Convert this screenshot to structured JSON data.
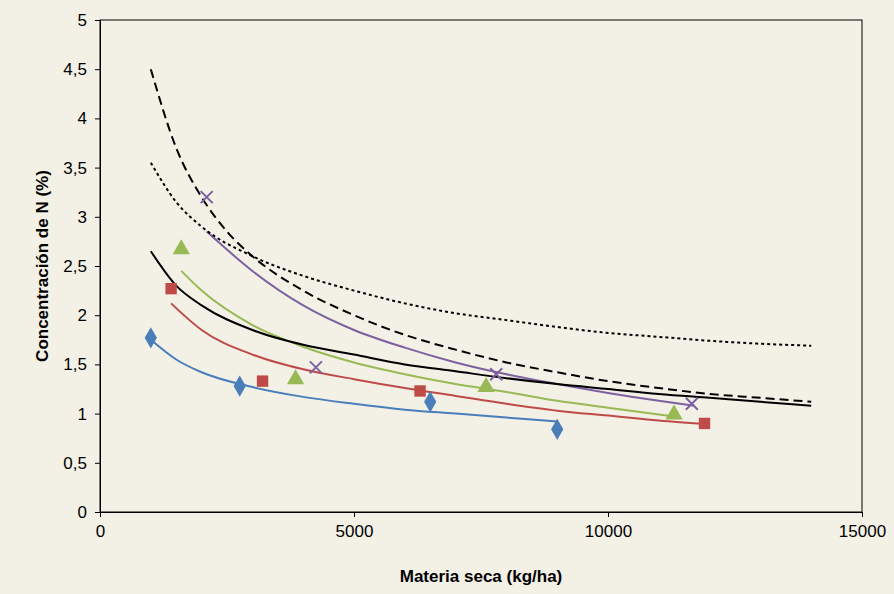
{
  "chart_data": {
    "type": "line",
    "xlabel": "Materia seca (kg/ha)",
    "ylabel": "Concentración de N (%)",
    "xlim": [
      0,
      15000
    ],
    "xticks": [
      0,
      5000,
      10000,
      15000
    ],
    "ylim": [
      0,
      5
    ],
    "yticks": [
      0,
      {
        "value": 0.5,
        "label": "0,5"
      },
      1,
      {
        "value": 1.5,
        "label": "1,5"
      },
      2,
      {
        "value": 2.5,
        "label": "2,5"
      },
      3,
      {
        "value": 3.5,
        "label": "3,5"
      },
      4,
      {
        "value": 4.5,
        "label": "4,5"
      },
      5
    ],
    "grid": false,
    "series": [
      {
        "type": "line",
        "color": "#4a7ebb",
        "line_style": "solid",
        "x": [
          1000,
          1500,
          2000,
          3000,
          4000,
          5000,
          6000,
          7000,
          8000,
          9000
        ],
        "values": [
          1.75,
          1.55,
          1.42,
          1.27,
          1.17,
          1.1,
          1.04,
          1.0,
          0.96,
          0.92
        ]
      },
      {
        "type": "line",
        "color": "#be4b48",
        "line_style": "solid",
        "x": [
          1400,
          2000,
          3000,
          4000,
          5000,
          6000,
          7000,
          8000,
          9000,
          10000,
          11000,
          12000
        ],
        "values": [
          2.12,
          1.85,
          1.6,
          1.45,
          1.35,
          1.26,
          1.18,
          1.1,
          1.03,
          0.98,
          0.93,
          0.89
        ]
      },
      {
        "type": "line",
        "color": "#98b954",
        "line_style": "solid",
        "x": [
          1600,
          2000,
          3000,
          4000,
          5000,
          6000,
          7000,
          8000,
          9000,
          10000,
          11300
        ],
        "values": [
          2.45,
          2.25,
          1.9,
          1.68,
          1.52,
          1.4,
          1.3,
          1.22,
          1.13,
          1.06,
          0.97
        ]
      },
      {
        "type": "line",
        "color": "#7d60a0",
        "line_style": "solid",
        "x": [
          2100,
          3000,
          4000,
          5000,
          6000,
          7000,
          8000,
          9000,
          10000,
          11000,
          11700
        ],
        "values": [
          2.85,
          2.45,
          2.1,
          1.85,
          1.67,
          1.52,
          1.4,
          1.3,
          1.21,
          1.13,
          1.08
        ]
      },
      {
        "type": "line",
        "color": "#000000",
        "line_style": "solid",
        "x": [
          1000,
          1500,
          2000,
          3000,
          4000,
          5000,
          6000,
          7000,
          8000,
          9000,
          10000,
          11000,
          12000,
          13000,
          14000
        ],
        "values": [
          2.65,
          2.3,
          2.1,
          1.85,
          1.7,
          1.6,
          1.5,
          1.43,
          1.36,
          1.3,
          1.25,
          1.2,
          1.16,
          1.12,
          1.08
        ]
      },
      {
        "type": "line",
        "color": "#000000",
        "line_style": "dashed",
        "x": [
          1000,
          1500,
          2000,
          2500,
          3000,
          4000,
          5000,
          6000,
          7000,
          8000,
          9000,
          10000,
          11000,
          12000,
          13000,
          14000
        ],
        "values": [
          4.5,
          3.7,
          3.2,
          2.85,
          2.6,
          2.25,
          2.0,
          1.8,
          1.65,
          1.52,
          1.42,
          1.33,
          1.26,
          1.2,
          1.16,
          1.12
        ]
      },
      {
        "type": "line",
        "color": "#000000",
        "line_style": "dotted",
        "x": [
          1000,
          1500,
          2000,
          3000,
          4000,
          5000,
          6000,
          7000,
          8000,
          9000,
          10000,
          11000,
          12000,
          13000,
          14000
        ],
        "values": [
          3.55,
          3.15,
          2.9,
          2.6,
          2.4,
          2.25,
          2.12,
          2.02,
          1.95,
          1.88,
          1.82,
          1.78,
          1.74,
          1.71,
          1.69
        ]
      },
      {
        "type": "scatter",
        "color": "#4a7ebb",
        "marker": "diamond",
        "x": [
          1000,
          2750,
          6500,
          9000
        ],
        "values": [
          1.77,
          1.28,
          1.12,
          0.84
        ]
      },
      {
        "type": "scatter",
        "color": "#be4b48",
        "marker": "square",
        "x": [
          1400,
          3200,
          6300,
          11900
        ],
        "values": [
          2.27,
          1.33,
          1.23,
          0.9
        ]
      },
      {
        "type": "scatter",
        "color": "#98b954",
        "marker": "triangle",
        "x": [
          1600,
          3850,
          7600,
          11300
        ],
        "values": [
          2.67,
          1.35,
          1.27,
          0.99
        ]
      },
      {
        "type": "scatter",
        "color": "#7d60a0",
        "marker": "x",
        "x": [
          2100,
          4250,
          7800,
          11650
        ],
        "values": [
          3.2,
          1.47,
          1.4,
          1.1
        ]
      }
    ]
  }
}
